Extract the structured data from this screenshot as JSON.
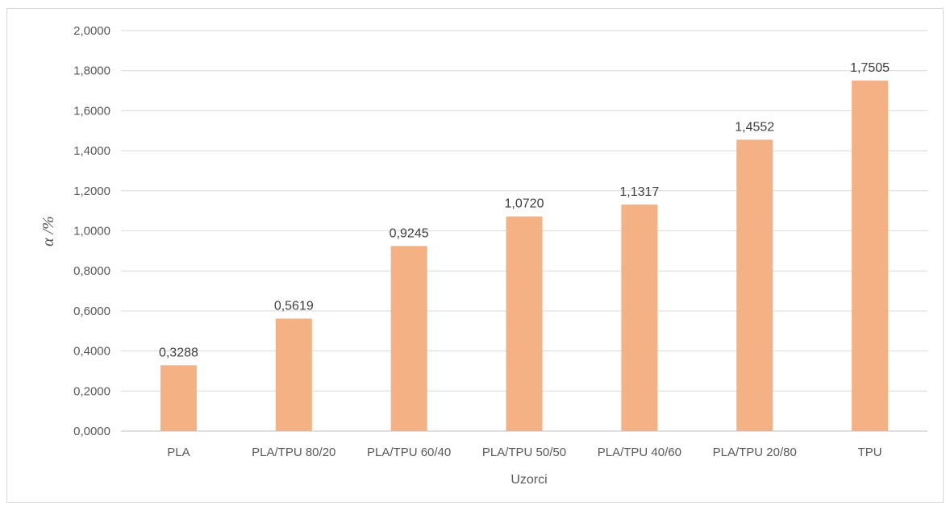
{
  "chart_data": {
    "type": "bar",
    "title": "",
    "categories": [
      "PLA",
      "PLA/TPU 80/20",
      "PLA/TPU 60/40",
      "PLA/TPU 50/50",
      "PLA/TPU 40/60",
      "PLA/TPU 20/80",
      "TPU"
    ],
    "values": [
      0.3288,
      0.5619,
      0.9245,
      1.072,
      1.1317,
      1.4552,
      1.7505
    ],
    "value_labels": [
      "0,3288",
      "0,5619",
      "0,9245",
      "1,0720",
      "1,1317",
      "1,4552",
      "1,7505"
    ],
    "xlabel": "Uzorci",
    "ylabel": "α /%",
    "ylim": [
      0,
      2.0
    ],
    "yticks": [
      0,
      0.2,
      0.4,
      0.6,
      0.8,
      1.0,
      1.2,
      1.4,
      1.6,
      1.8,
      2.0
    ],
    "ytick_labels": [
      "0,0000",
      "0,2000",
      "0,4000",
      "0,6000",
      "0,8000",
      "1,0000",
      "1,2000",
      "1,4000",
      "1,6000",
      "1,8000",
      "2,0000"
    ],
    "grid": true,
    "legend": "none",
    "colors": {
      "bar": "#f4b183",
      "grid": "#d9d9d9",
      "axis": "#bfbfbf"
    }
  }
}
